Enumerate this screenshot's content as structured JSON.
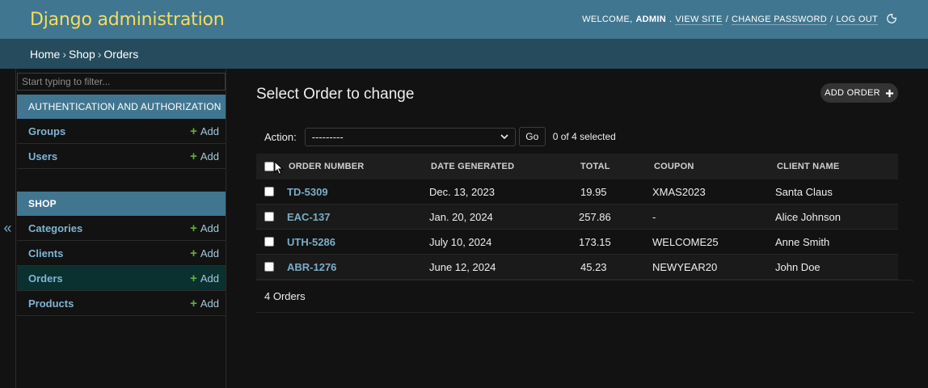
{
  "header": {
    "site_title": "Django administration",
    "welcome": "Welcome,",
    "username": "admin",
    "view_site": "View site",
    "change_password": "Change password",
    "log_out": "Log out",
    "separator": "/"
  },
  "breadcrumbs": {
    "home": "Home",
    "app": "Shop",
    "current": "Orders",
    "sep": "›"
  },
  "sidebar": {
    "filter_placeholder": "Start typing to filter...",
    "toggle_label": "«",
    "apps": [
      {
        "name": "Authentication and Authorization",
        "models": [
          {
            "name": "Groups",
            "add": "Add"
          },
          {
            "name": "Users",
            "add": "Add"
          }
        ]
      },
      {
        "name": "Shop",
        "models": [
          {
            "name": "Categories",
            "add": "Add"
          },
          {
            "name": "Clients",
            "add": "Add"
          },
          {
            "name": "Orders",
            "add": "Add"
          },
          {
            "name": "Products",
            "add": "Add"
          }
        ]
      }
    ]
  },
  "content": {
    "title": "Select Order to change",
    "add_button": "Add Order",
    "action_label": "Action:",
    "action_selected": "---------",
    "go_label": "Go",
    "selected_count": "0 of 4 selected",
    "columns": [
      "Order Number",
      "Date Generated",
      "Total",
      "Coupon",
      "Client Name"
    ],
    "rows": [
      [
        "TD-5309",
        "Dec. 13, 2023",
        "19.95",
        "XMAS2023",
        "Santa Claus"
      ],
      [
        "EAC-137",
        "Jan. 20, 2024",
        "257.86",
        "-",
        "Alice Johnson"
      ],
      [
        "UTH-5286",
        "July 10, 2024",
        "173.15",
        "WELCOME25",
        "Anne Smith"
      ],
      [
        "ABR-1276",
        "June 12, 2024",
        "45.23",
        "NEWYEAR20",
        "John Doe"
      ]
    ],
    "paginator": "4 Orders"
  },
  "colors": {
    "header_bg": "#417690",
    "title_yellow": "#f5dd5d",
    "breadcrumb_bg": "#264b5d",
    "link_blue": "#79aec8",
    "add_green": "#5fb336",
    "active_row": "#0a3030"
  }
}
